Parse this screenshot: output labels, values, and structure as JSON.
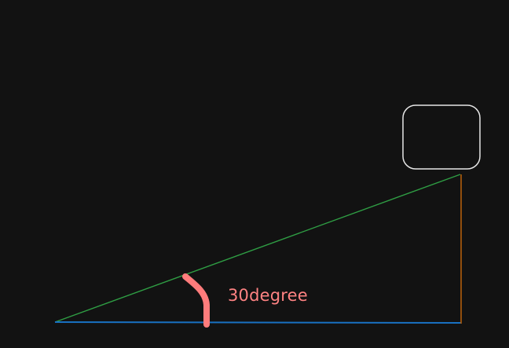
{
  "diagram": {
    "annotation": "30degree",
    "colors": {
      "background": "#121212",
      "box_stroke": "#e6e6e6",
      "hypotenuse": "#2f9e44",
      "base": "#1971c2",
      "vertical": "#b35d0b",
      "angle_arc": "#ff7c7c",
      "label": "#ff8383"
    }
  }
}
